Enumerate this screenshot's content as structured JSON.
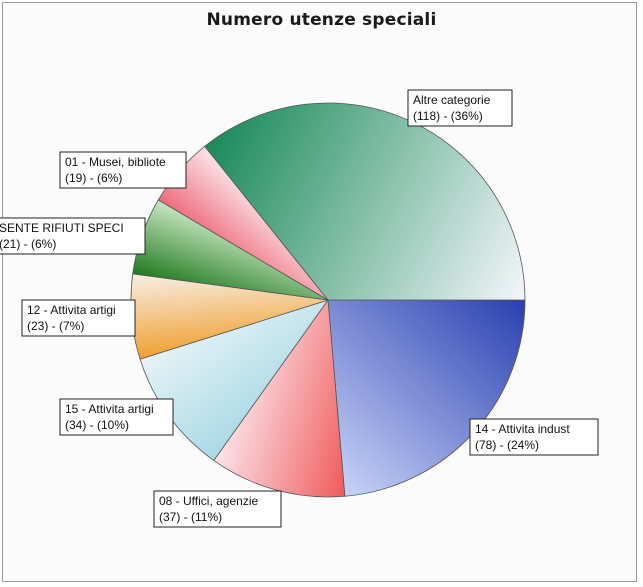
{
  "chart_data": {
    "type": "pie",
    "title": "Numero utenze speciali",
    "slices": [
      {
        "label": "14 - Attivita indust",
        "value": 78,
        "percent": "24%",
        "colors": [
          "#2a3fb0",
          "#c7d3f7"
        ]
      },
      {
        "label": "08 - Uffici, agenzie",
        "value": 37,
        "percent": "11%",
        "colors": [
          "#f05a5a",
          "#fbe4ea"
        ]
      },
      {
        "label": "15 - Attivita artigi",
        "value": 34,
        "percent": "10%",
        "colors": [
          "#a9d9e6",
          "#e6f3f6"
        ]
      },
      {
        "label": "12 - Attivita artigi",
        "value": 23,
        "percent": "7%",
        "colors": [
          "#f0a030",
          "#f7efe6"
        ]
      },
      {
        "label": "SENTE RIFIUTI SPECI",
        "value": 21,
        "percent": "6%",
        "colors": [
          "#1f7a1f",
          "#c9e6c2"
        ]
      },
      {
        "label": "01 - Musei, bibliote",
        "value": 19,
        "percent": "6%",
        "colors": [
          "#ee6a7a",
          "#fbe6ea"
        ]
      },
      {
        "label": "Altre categorie",
        "value": 118,
        "percent": "36%",
        "colors": [
          "#1a8a5a",
          "#f4f6fb"
        ]
      }
    ],
    "legend": "none"
  }
}
